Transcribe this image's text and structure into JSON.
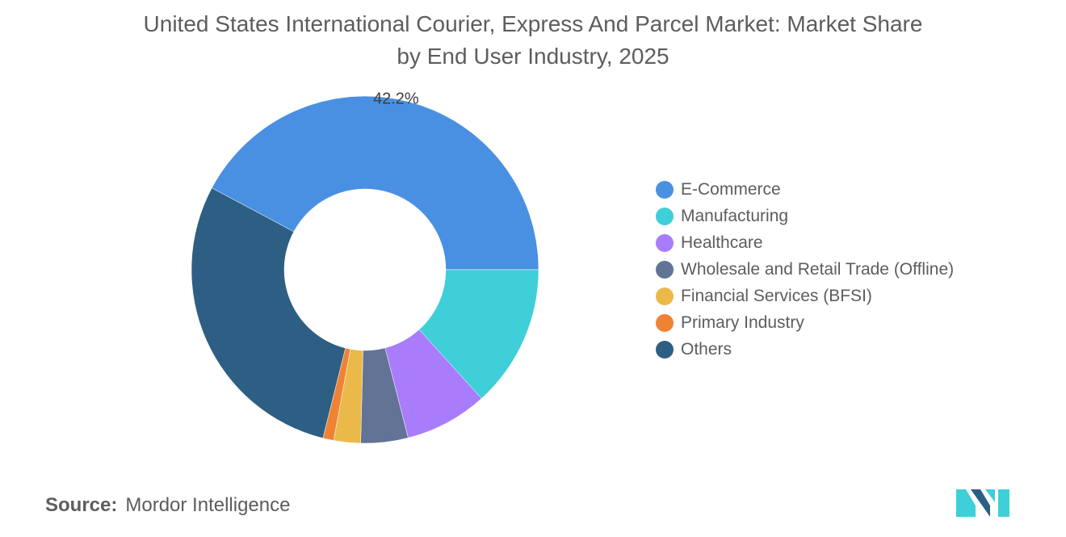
{
  "header": {
    "title_line1": "United States International Courier, Express And Parcel Market: Market Share",
    "title_line2": "by End User Industry, 2025"
  },
  "chart_data": {
    "type": "pie",
    "subtype": "donut",
    "title": "United States International Courier, Express And Parcel Market: Market Share by End User Industry, 2025",
    "categories": [
      "E-Commerce",
      "Manufacturing",
      "Healthcare",
      "Wholesale and Retail Trade (Offline)",
      "Financial Services (BFSI)",
      "Primary Industry",
      "Others"
    ],
    "values": [
      42.2,
      13.3,
      7.7,
      4.4,
      2.5,
      1.0,
      28.9
    ],
    "unit": "%",
    "colors": [
      "#4a90e2",
      "#3ecfd9",
      "#a87cfb",
      "#637396",
      "#ebb94a",
      "#f08234",
      "#2d5f84"
    ],
    "data_labels": [
      {
        "category": "E-Commerce",
        "text": "42.2%"
      }
    ],
    "legend_position": "right"
  },
  "source": {
    "label": "Source:",
    "value": "Mordor Intelligence"
  },
  "logo": {
    "icon": "mordor-intelligence-logo-icon",
    "color_dark": "#2d5f84",
    "color_light": "#3ecfd9"
  }
}
